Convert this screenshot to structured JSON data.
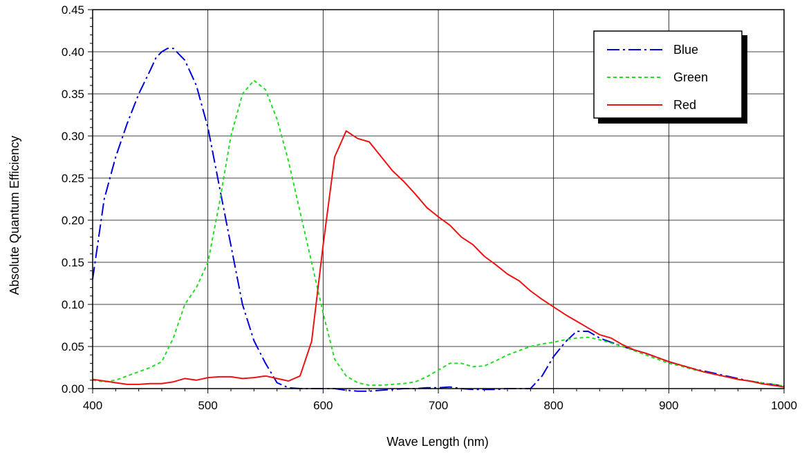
{
  "chart_data": {
    "type": "line",
    "title": "",
    "xlabel": "Wave Length (nm)",
    "ylabel": "Absolute Quantum Efficiency",
    "xlim": [
      400,
      1000
    ],
    "ylim": [
      0,
      0.45
    ],
    "xticks": [
      400,
      500,
      600,
      700,
      800,
      900,
      1000
    ],
    "xtick_labels": [
      "400",
      "500",
      "600",
      "700",
      "800",
      "900",
      "1000"
    ],
    "yticks": [
      0,
      0.05,
      0.1,
      0.15,
      0.2,
      0.25,
      0.3,
      0.35,
      0.4,
      0.45
    ],
    "ytick_labels": [
      "0.00",
      "0.05",
      "0.10",
      "0.15",
      "0.20",
      "0.25",
      "0.30",
      "0.35",
      "0.40",
      "0.45"
    ],
    "grid": true,
    "legend_position": "top-right",
    "series": [
      {
        "name": "Blue",
        "color": "#0000dd",
        "style": "dash-dot",
        "x": [
          400,
          410,
          420,
          430,
          440,
          450,
          455,
          460,
          465,
          470,
          480,
          490,
          500,
          510,
          520,
          530,
          540,
          550,
          560,
          570,
          580,
          590,
          600,
          610,
          620,
          630,
          640,
          650,
          660,
          670,
          680,
          690,
          700,
          710,
          720,
          730,
          740,
          750,
          760,
          770,
          780,
          790,
          800,
          810,
          820,
          830,
          840,
          850,
          860,
          870,
          880,
          890,
          900,
          910,
          920,
          930,
          940,
          950,
          960,
          970,
          980,
          990,
          1000
        ],
        "y": [
          0.13,
          0.225,
          0.275,
          0.315,
          0.35,
          0.378,
          0.393,
          0.4,
          0.404,
          0.404,
          0.39,
          0.36,
          0.31,
          0.24,
          0.17,
          0.1,
          0.057,
          0.03,
          0.007,
          0.001,
          0.0,
          0.0,
          0.0,
          0.0,
          -0.002,
          -0.003,
          -0.003,
          -0.002,
          -0.001,
          0.0,
          0.0,
          0.001,
          0.001,
          0.002,
          0.0,
          -0.001,
          -0.001,
          -0.001,
          0.0,
          0.0,
          0.0,
          0.015,
          0.038,
          0.055,
          0.068,
          0.068,
          0.06,
          0.055,
          0.05,
          0.046,
          0.042,
          0.037,
          0.032,
          0.028,
          0.024,
          0.021,
          0.018,
          0.015,
          0.012,
          0.009,
          0.007,
          0.005,
          0.003
        ]
      },
      {
        "name": "Green",
        "color": "#22dd22",
        "style": "dotted",
        "x": [
          400,
          410,
          420,
          430,
          440,
          450,
          460,
          470,
          480,
          490,
          500,
          510,
          520,
          530,
          540,
          550,
          560,
          570,
          580,
          590,
          600,
          610,
          620,
          630,
          640,
          650,
          660,
          670,
          680,
          690,
          700,
          710,
          720,
          730,
          740,
          750,
          760,
          770,
          780,
          790,
          800,
          810,
          820,
          830,
          840,
          850,
          860,
          870,
          880,
          890,
          900,
          910,
          920,
          930,
          940,
          950,
          960,
          970,
          980,
          990,
          1000
        ],
        "y": [
          0.01,
          0.008,
          0.01,
          0.015,
          0.02,
          0.025,
          0.032,
          0.06,
          0.1,
          0.12,
          0.15,
          0.22,
          0.3,
          0.35,
          0.366,
          0.355,
          0.32,
          0.27,
          0.21,
          0.15,
          0.09,
          0.035,
          0.015,
          0.007,
          0.004,
          0.004,
          0.005,
          0.006,
          0.008,
          0.014,
          0.022,
          0.03,
          0.03,
          0.026,
          0.027,
          0.033,
          0.04,
          0.045,
          0.05,
          0.053,
          0.055,
          0.058,
          0.06,
          0.061,
          0.058,
          0.054,
          0.05,
          0.045,
          0.04,
          0.035,
          0.03,
          0.027,
          0.023,
          0.02,
          0.017,
          0.014,
          0.011,
          0.009,
          0.007,
          0.005,
          0.003
        ]
      },
      {
        "name": "Red",
        "color": "#ee1111",
        "style": "solid",
        "x": [
          400,
          410,
          420,
          430,
          440,
          450,
          460,
          470,
          480,
          490,
          500,
          510,
          520,
          530,
          540,
          550,
          560,
          570,
          580,
          590,
          600,
          610,
          620,
          630,
          640,
          650,
          660,
          670,
          680,
          690,
          700,
          710,
          720,
          730,
          740,
          750,
          760,
          770,
          780,
          790,
          800,
          810,
          820,
          830,
          840,
          850,
          860,
          870,
          880,
          890,
          900,
          910,
          920,
          930,
          940,
          950,
          960,
          970,
          980,
          990,
          1000
        ],
        "y": [
          0.011,
          0.009,
          0.007,
          0.005,
          0.005,
          0.006,
          0.006,
          0.008,
          0.012,
          0.01,
          0.013,
          0.014,
          0.014,
          0.012,
          0.013,
          0.015,
          0.012,
          0.009,
          0.015,
          0.056,
          0.17,
          0.275,
          0.306,
          0.297,
          0.293,
          0.276,
          0.259,
          0.246,
          0.231,
          0.215,
          0.204,
          0.194,
          0.18,
          0.171,
          0.157,
          0.147,
          0.136,
          0.128,
          0.116,
          0.106,
          0.097,
          0.088,
          0.08,
          0.072,
          0.064,
          0.06,
          0.052,
          0.046,
          0.042,
          0.037,
          0.032,
          0.028,
          0.024,
          0.02,
          0.017,
          0.014,
          0.011,
          0.009,
          0.006,
          0.004,
          0.002
        ]
      }
    ]
  }
}
